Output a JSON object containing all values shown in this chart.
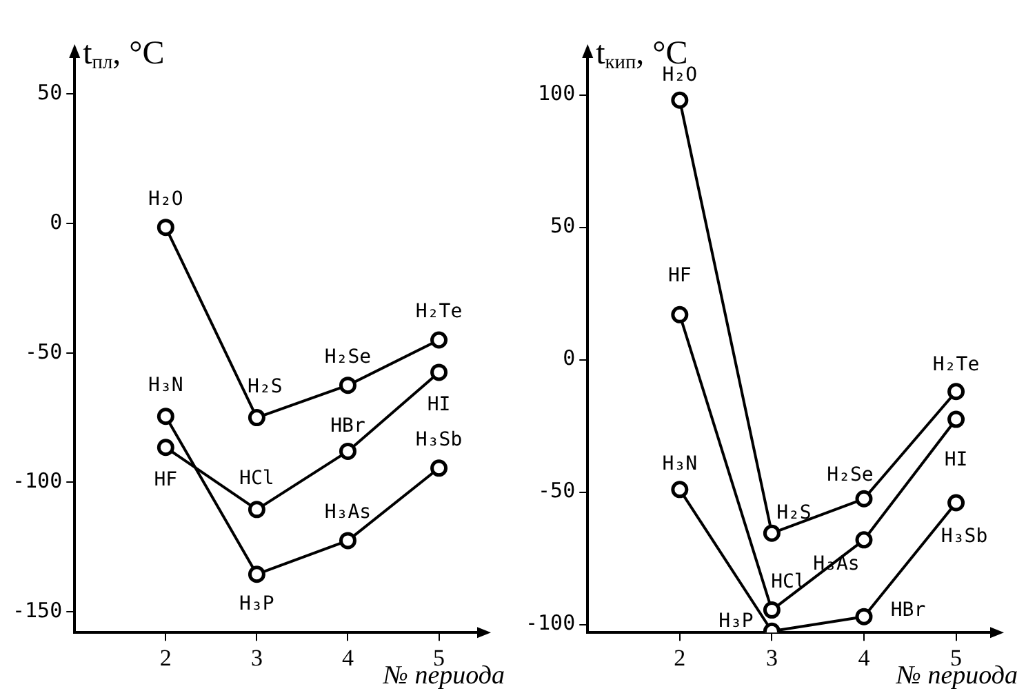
{
  "chart_data": [
    {
      "type": "line",
      "ylabel": "t$_{пл}$, °C",
      "xlabel": "№ периода",
      "x": [
        2,
        3,
        4,
        5
      ],
      "series": [
        {
          "color": "#000000",
          "values": [
            -1.5,
            -75,
            -62.5,
            -45
          ]
        },
        {
          "color": "#000000",
          "values": [
            -86.5,
            -110.5,
            -88,
            -57.5
          ]
        },
        {
          "color": "#000000",
          "values": [
            -74.5,
            -135.5,
            -122.5,
            -94.5
          ]
        }
      ],
      "xlim": [
        1,
        5.45
      ],
      "xticks": [
        2,
        3,
        4,
        5
      ],
      "ylim": [
        -158,
        65
      ],
      "yticks": [
        -150,
        -100,
        -50,
        0,
        50
      ],
      "grid": false,
      "legend": false,
      "marker": "circle",
      "line_style": "solid",
      "annotations": [
        {
          "text": "H₂O",
          "x": 2,
          "y": -1.5
        },
        {
          "text": "H₂S",
          "x": 3,
          "y": -75
        },
        {
          "text": "H₂Se",
          "x": 4,
          "y": -62.5
        },
        {
          "text": "H₂Te",
          "x": 5,
          "y": -45
        },
        {
          "text": "H₃N",
          "x": 2,
          "y": -74.5
        },
        {
          "text": "HF",
          "x": 2,
          "y": -86.5
        },
        {
          "text": "HCl",
          "x": 3,
          "y": -110.5
        },
        {
          "text": "HBr",
          "x": 4,
          "y": -88
        },
        {
          "text": "HI",
          "x": 5,
          "y": -57.5
        },
        {
          "text": "H₃Sb",
          "x": 5,
          "y": -94.5
        },
        {
          "text": "H₃As",
          "x": 4,
          "y": -122.5
        },
        {
          "text": "H₃P",
          "x": 3,
          "y": -135.5
        }
      ]
    },
    {
      "type": "line",
      "ylabel": "t$_{кип}$, °C",
      "xlabel": "№ периода",
      "x": [
        2,
        3,
        4,
        5
      ],
      "series": [
        {
          "color": "#000000",
          "values": [
            98,
            -65.5,
            -52.5,
            -12
          ]
        },
        {
          "color": "#000000",
          "values": [
            17,
            -94.5,
            -68,
            -22.5
          ]
        },
        {
          "color": "#000000",
          "values": [
            -49,
            -102.5,
            -97,
            -54
          ]
        }
      ],
      "xlim": [
        1,
        5.4
      ],
      "xticks": [
        2,
        3,
        4,
        5
      ],
      "ylim": [
        -103,
        115
      ],
      "yticks": [
        -100,
        -50,
        0,
        50,
        100
      ],
      "grid": false,
      "legend": false,
      "marker": "circle",
      "line_style": "solid",
      "annotations": [
        {
          "text": "H₂O",
          "x": 2,
          "y": 98
        },
        {
          "text": "HF",
          "x": 2,
          "y": 17
        },
        {
          "text": "H₃N",
          "x": 2,
          "y": -49
        },
        {
          "text": "H₂S",
          "x": 3,
          "y": -65.5
        },
        {
          "text": "H₂Se",
          "x": 4,
          "y": -52.5
        },
        {
          "text": "H₂Te",
          "x": 5,
          "y": -12
        },
        {
          "text": "HI",
          "x": 5,
          "y": -22.5
        },
        {
          "text": "H₃Sb",
          "x": 5,
          "y": -54
        },
        {
          "text": "H₃As",
          "x": 4,
          "y": -68
        },
        {
          "text": "HCl",
          "x": 3,
          "y": -94.5
        },
        {
          "text": "H₃P",
          "x": 3,
          "y": -102.5
        },
        {
          "text": "HBr",
          "x": 4,
          "y": -97
        }
      ]
    }
  ]
}
